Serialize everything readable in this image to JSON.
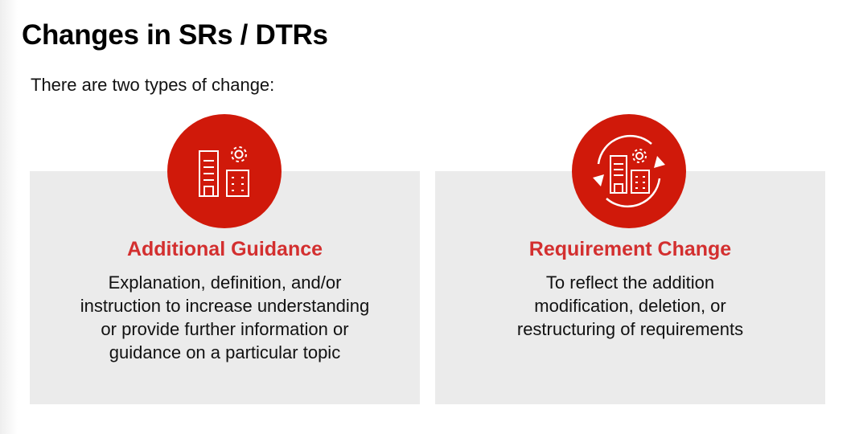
{
  "slide": {
    "title": "Changes in SRs / DTRs",
    "intro": "There are two types of change:"
  },
  "cards": [
    {
      "heading": "Additional Guidance",
      "icon": "buildings-gear-icon",
      "body_lines": [
        "Explanation, definition, and/or",
        "instruction to increase understanding",
        "or provide further information or",
        "guidance on a particular topic"
      ]
    },
    {
      "heading": "Requirement Change",
      "icon": "buildings-gear-cycle-icon",
      "body_lines": [
        "To reflect the addition",
        "modification, deletion, or",
        "restructuring of requirements"
      ]
    }
  ],
  "colors": {
    "accent": "#d0190a",
    "heading": "#d32f2f",
    "card_bg": "#ebebeb"
  }
}
